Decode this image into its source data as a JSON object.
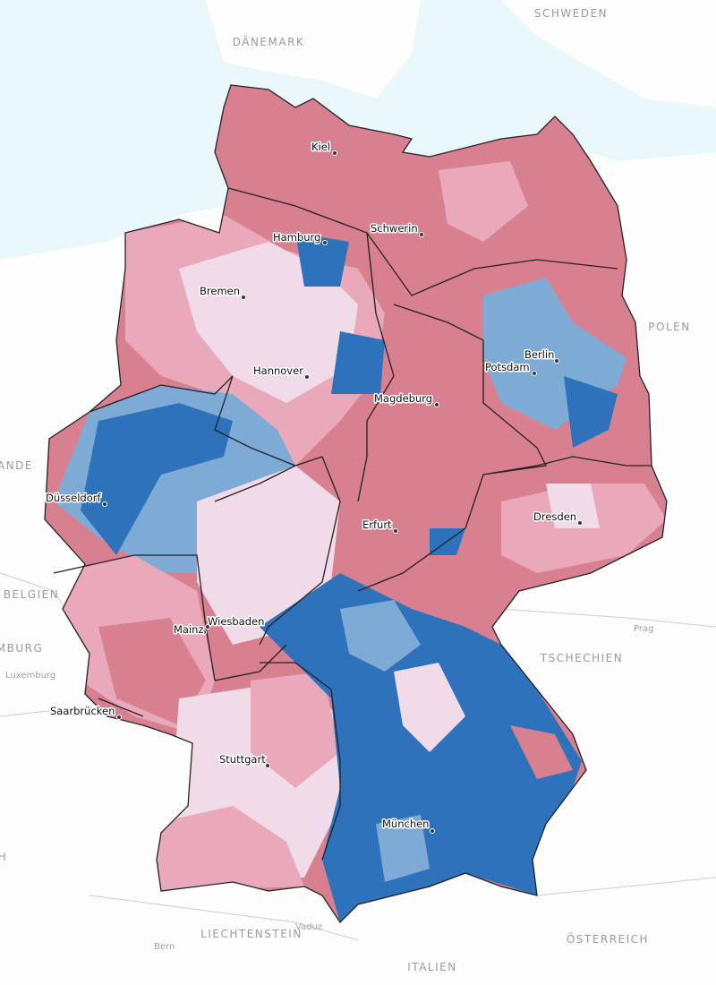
{
  "countries": [
    {
      "label": "SCHWEDEN"
    },
    {
      "label": "DÄNEMARK"
    },
    {
      "label": "POLEN"
    },
    {
      "label": "ANDE"
    },
    {
      "label": "BELGIEN"
    },
    {
      "label": "MBURG"
    },
    {
      "label": "TSCHECHIEN"
    },
    {
      "label": "H"
    },
    {
      "label": "LIECHTENSTEIN"
    },
    {
      "label": "ÖSTERREICH"
    },
    {
      "label": "ITALIEN"
    }
  ],
  "places": [
    {
      "label": "Luxemburg"
    },
    {
      "label": "Prag"
    },
    {
      "label": "Vaduz"
    },
    {
      "label": "Bern"
    }
  ],
  "cities": [
    {
      "label": "Kiel"
    },
    {
      "label": "Hamburg"
    },
    {
      "label": "Schwerin"
    },
    {
      "label": "Bremen"
    },
    {
      "label": "Hannover"
    },
    {
      "label": "Berlin"
    },
    {
      "label": "Potsdam"
    },
    {
      "label": "Magdeburg"
    },
    {
      "label": "Düsseldorf"
    },
    {
      "label": "Erfurt"
    },
    {
      "label": "Dresden"
    },
    {
      "label": "Wiesbaden"
    },
    {
      "label": "Mainz"
    },
    {
      "label": "Saarbrücken"
    },
    {
      "label": "Stuttgart"
    },
    {
      "label": "München"
    }
  ]
}
